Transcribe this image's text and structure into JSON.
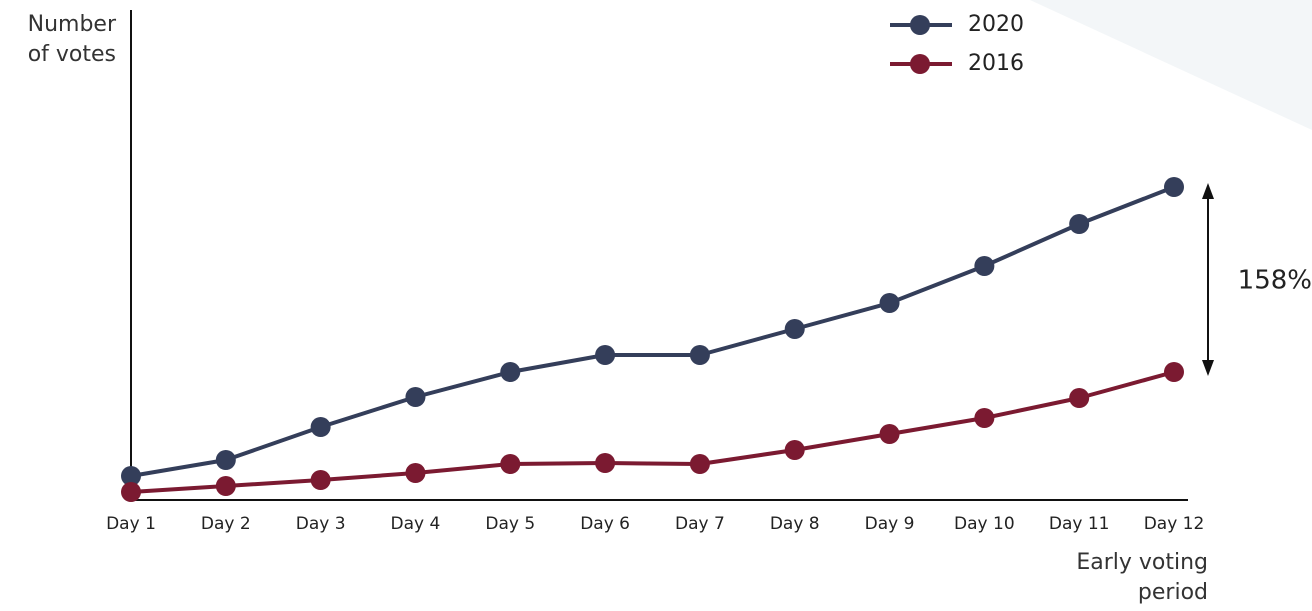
{
  "chart_data": {
    "type": "line",
    "y_label": "Number of votes",
    "x_label": "Early voting period",
    "annotation": "158%",
    "categories": [
      "Day 1",
      "Day 2",
      "Day 3",
      "Day 4",
      "Day 5",
      "Day 6",
      "Day 7",
      "Day 8",
      "Day 9",
      "Day 10",
      "Day 11",
      "Day 12"
    ],
    "series": [
      {
        "name": "2020",
        "color": "#343e5a",
        "values": [
          24,
          40,
          73,
          103,
          128,
          145,
          145,
          171,
          197,
          234,
          276,
          313
        ]
      },
      {
        "name": "2016",
        "color": "#7b1a31",
        "values": [
          8,
          14,
          20,
          27,
          36,
          37,
          36,
          50,
          66,
          82,
          102,
          128
        ]
      }
    ],
    "ylim": [
      0,
      490
    ],
    "legend": "top-right"
  }
}
